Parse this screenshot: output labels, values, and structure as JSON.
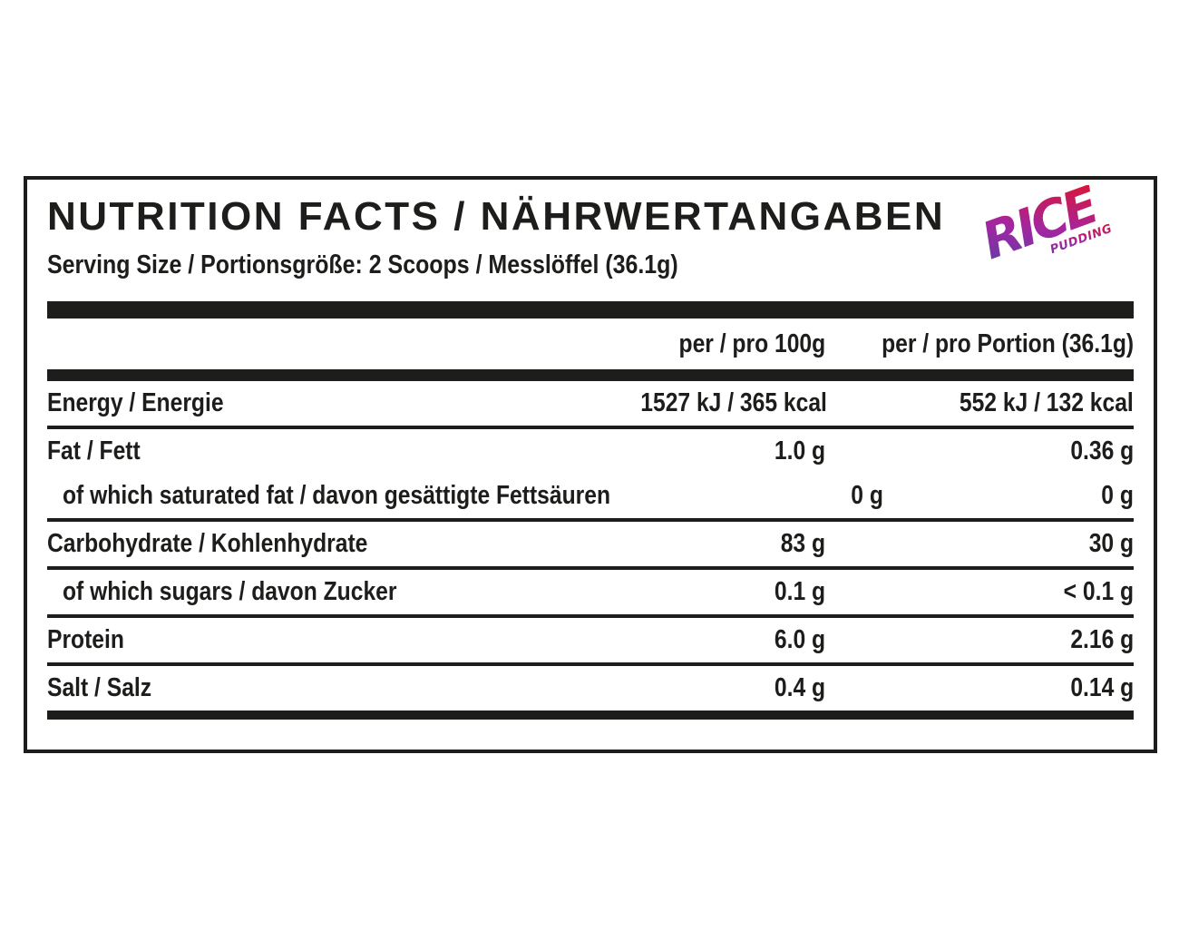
{
  "label": {
    "title": "NUTRITION FACTS / NÄHRWERTANGABEN",
    "serving_line": "Serving Size / Portionsgröße: 2 Scoops / Messlöffel (36.1g)",
    "logo": {
      "brand": "RICE",
      "sub": "PUDDING",
      "gradient_from": "#5b3fa8",
      "gradient_mid": "#a326a0",
      "gradient_to": "#e31226"
    },
    "columns": [
      "per / pro 100g",
      "per / pro Portion (36.1g)"
    ],
    "rows": [
      {
        "label": "Energy / Energie",
        "indent": false,
        "per100": "1527 kJ / 365 kcal",
        "portion": "552 kJ / 132 kcal",
        "sep_after": true
      },
      {
        "label": "Fat / Fett",
        "indent": false,
        "per100": "1.0 g",
        "portion": "0.36 g",
        "sep_after": false
      },
      {
        "label": "of which saturated fat / davon gesättigte Fettsäuren",
        "indent": true,
        "per100": "0 g",
        "portion": "0 g",
        "sep_after": true
      },
      {
        "label": "Carbohydrate / Kohlenhydrate",
        "indent": false,
        "per100": "83 g",
        "portion": "30 g",
        "sep_after": true
      },
      {
        "label": "of which sugars / davon Zucker",
        "indent": true,
        "per100": "0.1 g",
        "portion": "< 0.1 g",
        "sep_after": true
      },
      {
        "label": "Protein",
        "indent": false,
        "per100": "6.0 g",
        "portion": "2.16 g",
        "sep_after": true
      },
      {
        "label": "Salt / Salz",
        "indent": false,
        "per100": "0.4 g",
        "portion": "0.14 g",
        "sep_after": false
      }
    ],
    "colors": {
      "ink": "#1d1d1b"
    }
  }
}
